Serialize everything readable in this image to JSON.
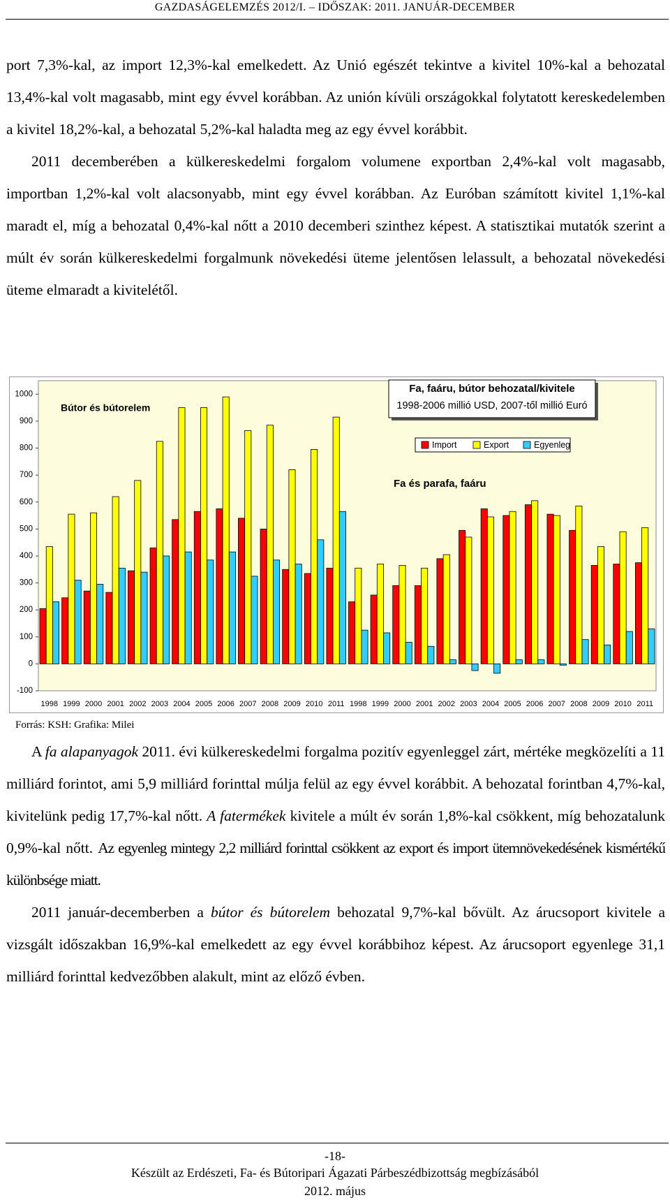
{
  "header": {
    "title": "GAZDASÁGELEMZÉS 2012/I. – IDŐSZAK: 2011. JANUÁR-DECEMBER"
  },
  "paragraphs": [
    [
      "port 7,3%-kal, az import 12,3%-kal emelkedett. Az Unió egészét tekintve a kivitel 10%-kal a behozatal 13,4%-kal volt magasabb, mint egy évvel korábban. Az unión kívüli országokkal folytatott kereskedelemben a kivitel 18,2%-kal, a behozatal 5,2%-kal haladta meg az egy évvel korábbit."
    ],
    [
      "2011 decemberében a külkereskedelmi forgalom volumene exportban 2,4%-kal volt magasabb, importban 1,2%-kal volt alacsonyabb, mint egy évvel korábban. Az Euróban számított kivitel 1,1%-kal maradt el, míg a behozatal 0,4%-kal nőtt a 2010 decemberi szinthez képest. A statisztikai mutatók szerint a múlt év során külkereskedelmi forgalmunk növekedési üteme jelentősen lelassult, a behozatal növekedési üteme elmaradt a kivitelétől."
    ],
    [
      "A ",
      "fa alapanyagok",
      " 2011. évi külkereskedelmi forgalma pozitív egyenleggel zárt, mértéke megközelíti a 11 milliárd forintot, ami 5,9 milliárd forinttal múlja felül az egy évvel korábbit. A behozatal forintban 4,7%-kal, kivitelünk pedig 17,7%-kal nőtt. ",
      "A fatermékek",
      " kivitele a múlt év során 1,8%-kal csökkent, míg behozatalunk 0,9%-kal nőtt. ",
      "Az egyenleg mintegy 2,2 milliárd forinttal csökkent az export és import ütemnövekedésének kismértékű különbsége miatt."
    ],
    [
      "2011 január-decemberben a ",
      "bútor és bútorelem",
      " behozatal 9,7%-kal bővült. Az árucsoport kivitele a vizsgált időszakban 16,9%-kal emelkedett az egy évvel korábbihoz képest. Az árucsoport egyenlege 31,1 milliárd forinttal kedvezőbben alakult, mint az előző évben."
    ]
  ],
  "chart_data": {
    "type": "bar",
    "title": "Fa, faáru, bútor behozatal/kivitele",
    "subtitle": "1998-2006 millió USD, 2007-től millió Euró",
    "annotations": [
      "Bútor és bútorelem",
      "Fa és parafa, faáru"
    ],
    "categories": [
      "1998",
      "1999",
      "2000",
      "2001",
      "2002",
      "2003",
      "2004",
      "2005",
      "2006",
      "2007",
      "2008",
      "2009",
      "2010",
      "2011",
      "1998",
      "1999",
      "2000",
      "2001",
      "2002",
      "2003",
      "2004",
      "2005",
      "2006",
      "2007",
      "2008",
      "2009",
      "2010",
      "2011"
    ],
    "series": [
      {
        "name": "Import",
        "color": "#ff0000",
        "values": [
          205,
          245,
          270,
          265,
          345,
          430,
          535,
          565,
          575,
          540,
          500,
          350,
          335,
          355,
          230,
          255,
          290,
          290,
          390,
          495,
          575,
          550,
          590,
          555,
          495,
          365,
          370,
          375
        ]
      },
      {
        "name": "Export",
        "color": "#ffff00",
        "values": [
          435,
          555,
          560,
          620,
          680,
          825,
          950,
          950,
          990,
          865,
          885,
          720,
          795,
          915,
          355,
          370,
          365,
          355,
          405,
          470,
          545,
          565,
          605,
          550,
          585,
          435,
          490,
          505
        ]
      },
      {
        "name": "Egyenleg",
        "color": "#33ccff",
        "values": [
          230,
          310,
          295,
          355,
          340,
          400,
          415,
          385,
          415,
          325,
          385,
          370,
          460,
          565,
          125,
          115,
          80,
          65,
          15,
          -25,
          -35,
          15,
          15,
          -5,
          90,
          70,
          120,
          130
        ]
      }
    ],
    "ylim": [
      -100,
      1050
    ],
    "yticks": [
      -100,
      0,
      100,
      200,
      300,
      400,
      500,
      600,
      700,
      800,
      900,
      1000
    ],
    "grid": false,
    "source": "Forrás: KSH: Grafika: Milei"
  },
  "footer": {
    "page": "-18-",
    "line1": "Készült az Erdészeti, Fa- és Bútoripari Ágazati Párbeszédbizottság megbízásából",
    "line2": "2012. május"
  }
}
